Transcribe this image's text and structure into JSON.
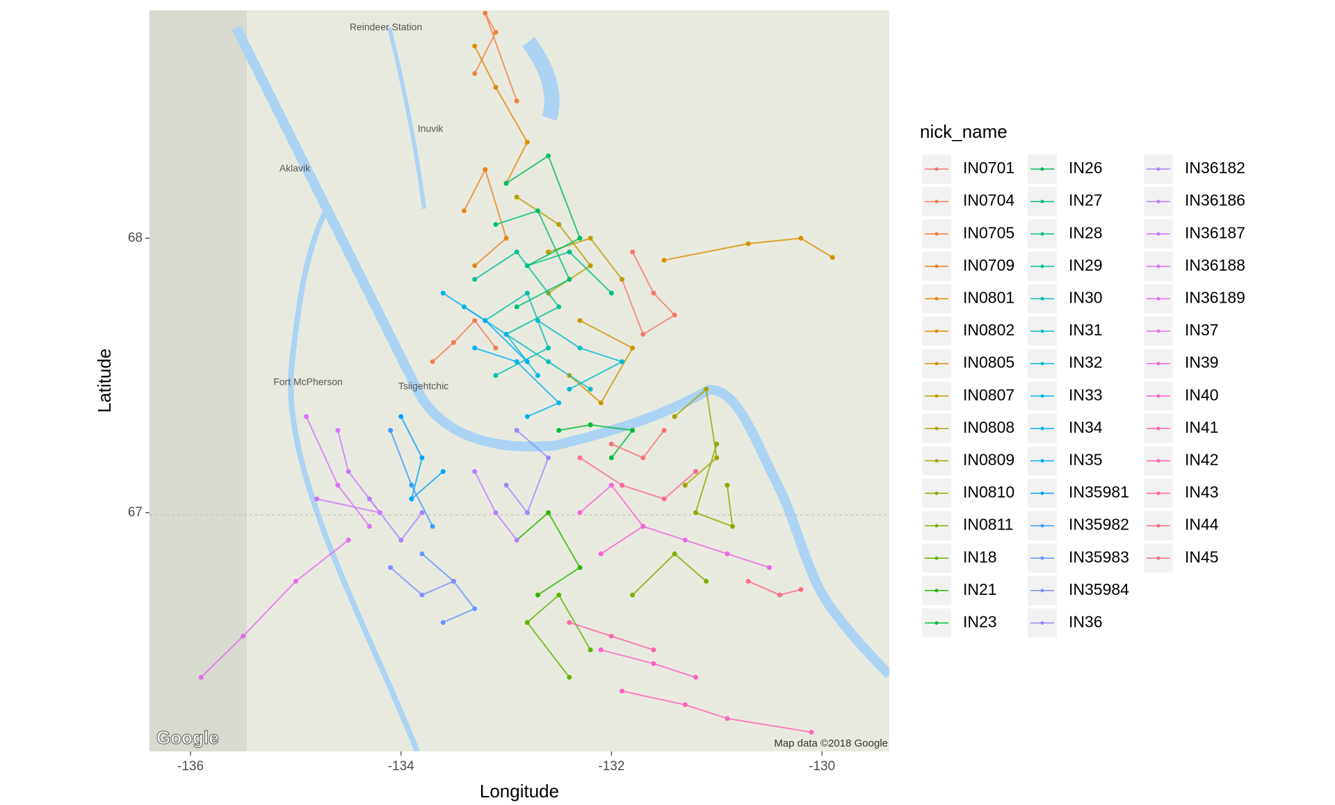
{
  "chart_data": {
    "type": "map-tracks",
    "x_label": "Longitude",
    "y_label": "Latitude",
    "legend_title": "nick_name",
    "xlim": [
      -136.39,
      -129.36
    ],
    "ylim": [
      66.13,
      68.83
    ],
    "xticks": [
      -136,
      -134,
      -132,
      -130
    ],
    "yticks": [
      67,
      68
    ],
    "map_labels": [
      "Reindeer Station",
      "Inuvik",
      "Aklavik",
      "Fort McPherson",
      "Tsiigehtchic",
      "Map data ©2018 Google",
      "Google"
    ],
    "series": [
      {
        "name": "IN0701",
        "color": "#F8766D",
        "x": [
          -131.8,
          -131.6,
          -131.4,
          -131.7,
          -131.9
        ],
        "y": [
          67.95,
          67.8,
          67.72,
          67.65,
          67.85
        ]
      },
      {
        "name": "IN0704",
        "color": "#F37B59",
        "x": [
          -133.7,
          -133.5,
          -133.3,
          -133.1
        ],
        "y": [
          67.55,
          67.62,
          67.7,
          67.6
        ]
      },
      {
        "name": "IN0705",
        "color": "#EE8044",
        "x": [
          -133.3,
          -133.1,
          -133.2,
          -132.9
        ],
        "y": [
          68.6,
          68.75,
          68.82,
          68.5
        ]
      },
      {
        "name": "IN0709",
        "color": "#E7861B",
        "x": [
          -133.4,
          -133.2,
          -133.0,
          -133.3
        ],
        "y": [
          68.1,
          68.25,
          68.0,
          67.9
        ]
      },
      {
        "name": "IN0801",
        "color": "#E08B00",
        "x": [
          -133.3,
          -133.1,
          -132.8,
          -133.0
        ],
        "y": [
          68.7,
          68.55,
          68.35,
          68.2
        ]
      },
      {
        "name": "IN0802",
        "color": "#D89000",
        "x": [
          -131.5,
          -130.7,
          -130.2,
          -129.9
        ],
        "y": [
          67.92,
          67.98,
          68.0,
          67.93
        ]
      },
      {
        "name": "IN0805",
        "color": "#CD9600",
        "x": [
          -132.4,
          -132.1,
          -131.8,
          -132.3
        ],
        "y": [
          67.5,
          67.4,
          67.6,
          67.7
        ]
      },
      {
        "name": "IN0807",
        "color": "#C19B00",
        "x": [
          -132.6,
          -132.2,
          -131.9
        ],
        "y": [
          67.95,
          68.0,
          67.85
        ]
      },
      {
        "name": "IN0808",
        "color": "#B39F00",
        "x": [
          -132.9,
          -132.5,
          -132.2,
          -132.6
        ],
        "y": [
          68.15,
          68.05,
          67.9,
          67.8
        ]
      },
      {
        "name": "IN0809",
        "color": "#A3A500",
        "x": [
          -131.4,
          -131.1,
          -131.0,
          -131.3
        ],
        "y": [
          67.35,
          67.45,
          67.2,
          67.1
        ]
      },
      {
        "name": "IN0810",
        "color": "#91A900",
        "x": [
          -130.9,
          -130.85,
          -131.2,
          -131.0
        ],
        "y": [
          67.1,
          66.95,
          67.0,
          67.25
        ]
      },
      {
        "name": "IN0811",
        "color": "#7CAE00",
        "x": [
          -131.8,
          -131.4,
          -131.1
        ],
        "y": [
          66.7,
          66.85,
          66.75
        ]
      },
      {
        "name": "IN18",
        "color": "#5FB400",
        "x": [
          -132.2,
          -132.5,
          -132.8,
          -132.4
        ],
        "y": [
          66.5,
          66.7,
          66.6,
          66.4
        ]
      },
      {
        "name": "IN21",
        "color": "#2BB800",
        "x": [
          -132.9,
          -132.6,
          -132.3,
          -132.7
        ],
        "y": [
          66.9,
          67.0,
          66.8,
          66.7
        ]
      },
      {
        "name": "IN23",
        "color": "#00BB3B",
        "x": [
          -132.5,
          -132.2,
          -131.8,
          -132.0
        ],
        "y": [
          67.3,
          67.32,
          67.3,
          67.2
        ]
      },
      {
        "name": "IN26",
        "color": "#00BD5C",
        "x": [
          -133.0,
          -132.6,
          -132.3,
          -132.8
        ],
        "y": [
          68.2,
          68.3,
          68.0,
          67.9
        ]
      },
      {
        "name": "IN27",
        "color": "#00BF74",
        "x": [
          -133.1,
          -132.7,
          -132.4,
          -132.9
        ],
        "y": [
          68.05,
          68.1,
          67.85,
          67.75
        ]
      },
      {
        "name": "IN28",
        "color": "#00C08A",
        "x": [
          -132.8,
          -132.4,
          -132.0
        ],
        "y": [
          67.9,
          67.95,
          67.8
        ]
      },
      {
        "name": "IN29",
        "color": "#00C19E",
        "x": [
          -133.3,
          -132.9,
          -132.5,
          -133.0
        ],
        "y": [
          67.85,
          67.95,
          67.75,
          67.65
        ]
      },
      {
        "name": "IN30",
        "color": "#00C1B0",
        "x": [
          -133.2,
          -132.8,
          -132.6,
          -133.1
        ],
        "y": [
          67.7,
          67.8,
          67.6,
          67.5
        ]
      },
      {
        "name": "IN31",
        "color": "#00BFC2",
        "x": [
          -133.0,
          -132.6,
          -132.2
        ],
        "y": [
          67.65,
          67.55,
          67.45
        ]
      },
      {
        "name": "IN32",
        "color": "#00BCD3",
        "x": [
          -132.7,
          -132.3,
          -131.9,
          -132.4
        ],
        "y": [
          67.7,
          67.6,
          67.55,
          67.45
        ]
      },
      {
        "name": "IN33",
        "color": "#00B8E3",
        "x": [
          -133.4,
          -133.0,
          -132.7
        ],
        "y": [
          67.75,
          67.65,
          67.5
        ]
      },
      {
        "name": "IN34",
        "color": "#00B3F0",
        "x": [
          -133.3,
          -132.9,
          -132.5,
          -132.8
        ],
        "y": [
          67.6,
          67.55,
          67.4,
          67.35
        ]
      },
      {
        "name": "IN35",
        "color": "#00ACFC",
        "x": [
          -133.6,
          -133.2,
          -132.8
        ],
        "y": [
          67.8,
          67.7,
          67.55
        ]
      },
      {
        "name": "IN35981",
        "color": "#00A5FF",
        "x": [
          -134.0,
          -133.8,
          -133.9,
          -133.6
        ],
        "y": [
          67.35,
          67.2,
          67.05,
          67.15
        ]
      },
      {
        "name": "IN35982",
        "color": "#359EFF",
        "x": [
          -134.1,
          -133.9,
          -133.7
        ],
        "y": [
          67.3,
          67.1,
          66.95
        ]
      },
      {
        "name": "IN35983",
        "color": "#6097FF",
        "x": [
          -133.8,
          -133.5,
          -133.3,
          -133.6
        ],
        "y": [
          66.85,
          66.75,
          66.65,
          66.6
        ]
      },
      {
        "name": "IN35984",
        "color": "#7E90FF",
        "x": [
          -134.1,
          -133.8,
          -133.5
        ],
        "y": [
          66.8,
          66.7,
          66.75
        ]
      },
      {
        "name": "IN36",
        "color": "#9689FF",
        "x": [
          -133.0,
          -132.8,
          -132.6,
          -132.9
        ],
        "y": [
          67.1,
          67.0,
          67.2,
          67.3
        ]
      },
      {
        "name": "IN36182",
        "color": "#AA82FF",
        "x": [
          -134.3,
          -134.0,
          -133.8
        ],
        "y": [
          67.05,
          66.9,
          67.0
        ]
      },
      {
        "name": "IN36186",
        "color": "#BC7CFF",
        "x": [
          -133.3,
          -133.1,
          -132.9
        ],
        "y": [
          67.15,
          67.0,
          66.9
        ]
      },
      {
        "name": "IN36187",
        "color": "#CB76FF",
        "x": [
          -134.6,
          -134.5,
          -134.2,
          -134.8
        ],
        "y": [
          67.3,
          67.15,
          67.0,
          67.05
        ]
      },
      {
        "name": "IN36188",
        "color": "#D871F8",
        "x": [
          -134.9,
          -134.6,
          -134.3
        ],
        "y": [
          67.35,
          67.1,
          66.95
        ]
      },
      {
        "name": "IN36189",
        "color": "#E46CF0",
        "x": [
          -135.9,
          -135.5,
          -135.0,
          -134.5
        ],
        "y": [
          66.4,
          66.55,
          66.75,
          66.9
        ]
      },
      {
        "name": "IN37",
        "color": "#EE67E6",
        "x": [
          -131.7,
          -131.3,
          -130.9,
          -130.5
        ],
        "y": [
          66.95,
          66.9,
          66.85,
          66.8
        ]
      },
      {
        "name": "IN39",
        "color": "#F663D9",
        "x": [
          -132.3,
          -132.0,
          -131.7,
          -132.1
        ],
        "y": [
          67.0,
          67.1,
          66.95,
          66.85
        ]
      },
      {
        "name": "IN40",
        "color": "#FC61CB",
        "x": [
          -132.1,
          -131.6,
          -131.2
        ],
        "y": [
          66.5,
          66.45,
          66.4
        ]
      },
      {
        "name": "IN41",
        "color": "#FF61BC",
        "x": [
          -131.9,
          -131.3,
          -130.9,
          -130.1
        ],
        "y": [
          66.35,
          66.3,
          66.25,
          66.2
        ]
      },
      {
        "name": "IN42",
        "color": "#FF63AC",
        "x": [
          -132.4,
          -132.0,
          -131.6
        ],
        "y": [
          66.6,
          66.55,
          66.5
        ]
      },
      {
        "name": "IN43",
        "color": "#FF669B",
        "x": [
          -132.3,
          -131.9,
          -131.5,
          -131.2
        ],
        "y": [
          67.2,
          67.1,
          67.05,
          67.15
        ]
      },
      {
        "name": "IN44",
        "color": "#FC6B8A",
        "x": [
          -130.7,
          -130.4,
          -130.2
        ],
        "y": [
          66.75,
          66.7,
          66.72
        ]
      },
      {
        "name": "IN45",
        "color": "#FA707A",
        "x": [
          -132.0,
          -131.7,
          -131.5
        ],
        "y": [
          67.25,
          67.2,
          67.3
        ]
      }
    ]
  }
}
